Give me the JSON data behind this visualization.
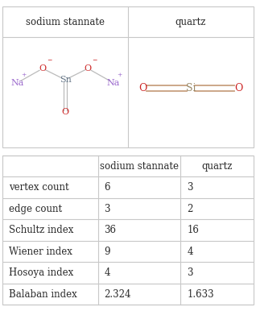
{
  "title_row": [
    "",
    "sodium stannate",
    "quartz"
  ],
  "rows": [
    [
      "vertex count",
      "6",
      "3"
    ],
    [
      "edge count",
      "3",
      "2"
    ],
    [
      "Schultz index",
      "36",
      "16"
    ],
    [
      "Wiener index",
      "9",
      "4"
    ],
    [
      "Hosoya index",
      "4",
      "3"
    ],
    [
      "Balaban index",
      "2.324",
      "1.633"
    ]
  ],
  "bg_color": "#ffffff",
  "border_color": "#c8c8c8",
  "text_color": "#2a2a2a",
  "header_fontsize": 8.5,
  "cell_fontsize": 8.5,
  "na_color": "#9966cc",
  "o_color": "#cc2222",
  "sn_color": "#667788",
  "si_color": "#998866",
  "quartz_bond_color": "#cc3333",
  "bond_color": "#c8a080"
}
